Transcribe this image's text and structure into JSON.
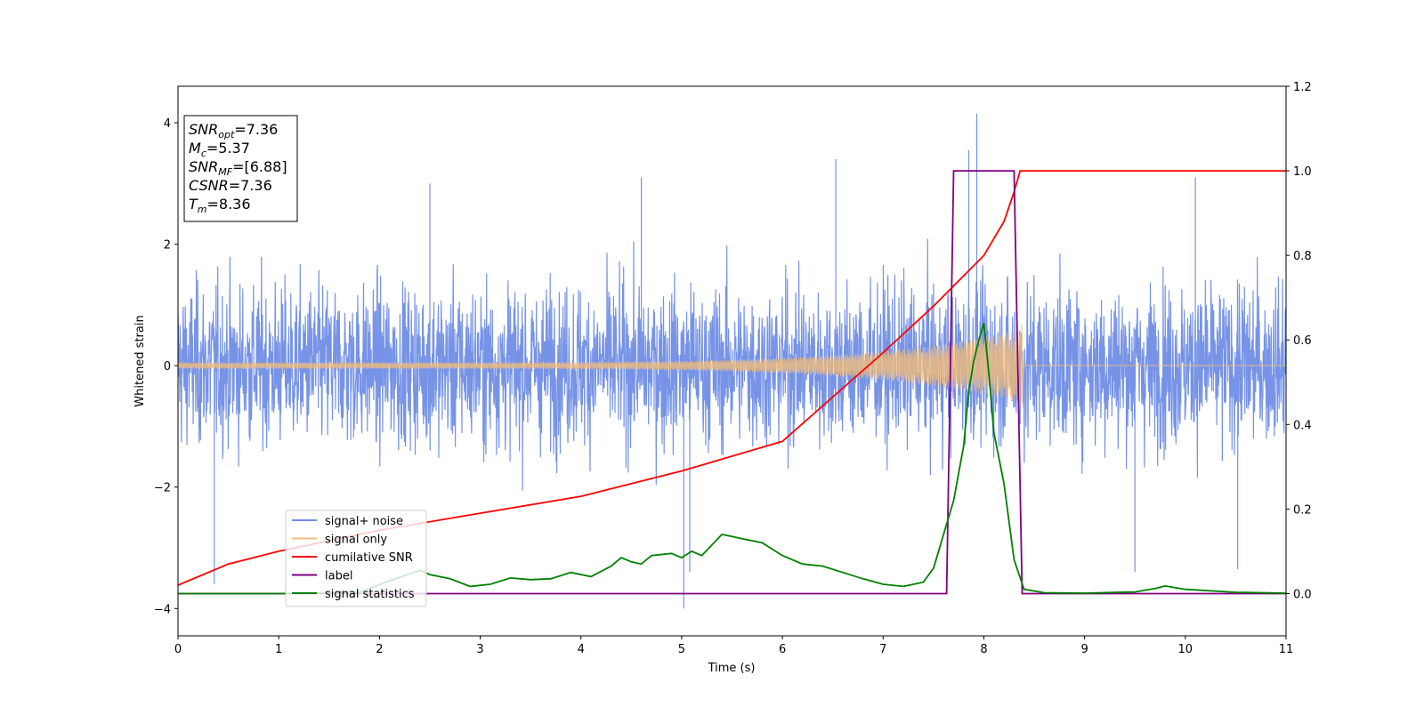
{
  "chart_data": {
    "type": "line",
    "xlabel": "Time (s)",
    "ylabel": "Whitened strain",
    "xlim": [
      0,
      11
    ],
    "ylim_left": [
      -4.45,
      4.6
    ],
    "ylim_right": [
      -0.1,
      1.2
    ],
    "x_ticks": [
      {
        "v": 0,
        "t": "0"
      },
      {
        "v": 1,
        "t": "1"
      },
      {
        "v": 2,
        "t": "2"
      },
      {
        "v": 3,
        "t": "3"
      },
      {
        "v": 4,
        "t": "4"
      },
      {
        "v": 5,
        "t": "5"
      },
      {
        "v": 6,
        "t": "6"
      },
      {
        "v": 7,
        "t": "7"
      },
      {
        "v": 8,
        "t": "8"
      },
      {
        "v": 9,
        "t": "9"
      },
      {
        "v": 10,
        "t": "10"
      },
      {
        "v": 11,
        "t": "11"
      }
    ],
    "y_ticks_left": [
      {
        "v": -4,
        "t": "−4"
      },
      {
        "v": -2,
        "t": "−2"
      },
      {
        "v": 0,
        "t": "0"
      },
      {
        "v": 2,
        "t": "2"
      },
      {
        "v": 4,
        "t": "4"
      }
    ],
    "y_ticks_right": [
      {
        "v": 0.0,
        "t": "0.0"
      },
      {
        "v": 0.2,
        "t": "0.2"
      },
      {
        "v": 0.4,
        "t": "0.4"
      },
      {
        "v": 0.6,
        "t": "0.6"
      },
      {
        "v": 0.8,
        "t": "0.8"
      },
      {
        "v": 1.0,
        "t": "1.0"
      },
      {
        "v": 1.2,
        "t": "1.2"
      }
    ],
    "series": [
      {
        "name": "signal+ noise",
        "color": "#6f8de6",
        "axis": "left",
        "kind": "noise",
        "noise_sigma": 1.05,
        "spike_max": 4.15
      },
      {
        "name": "signal only",
        "color": "#f2bd7a",
        "axis": "left",
        "kind": "chirp",
        "amplitude_start": 0.05,
        "amplitude_end": 0.6,
        "merger_time": 8.36
      },
      {
        "name": "cumilative SNR",
        "color": "#ff0000",
        "axis": "right",
        "x": [
          0,
          0.5,
          1,
          2,
          3,
          4,
          5,
          6,
          7,
          7.5,
          8,
          8.2,
          8.3,
          8.36,
          8.4,
          9,
          10,
          11
        ],
        "y": [
          0.02,
          0.07,
          0.1,
          0.15,
          0.19,
          0.23,
          0.29,
          0.36,
          0.57,
          0.68,
          0.8,
          0.88,
          0.95,
          1.0,
          1.0,
          1.0,
          1.0,
          1.0
        ]
      },
      {
        "name": "label",
        "color": "#800080",
        "axis": "right",
        "x": [
          0,
          7.63,
          7.7,
          8.3,
          8.38,
          11
        ],
        "y": [
          0,
          0,
          1,
          1,
          0,
          0
        ]
      },
      {
        "name": "signal statistics",
        "color": "#008000",
        "axis": "right",
        "x": [
          0,
          1,
          1.8,
          2.1,
          2.4,
          2.5,
          2.7,
          2.9,
          3.1,
          3.3,
          3.5,
          3.7,
          3.9,
          4.1,
          4.3,
          4.4,
          4.5,
          4.6,
          4.7,
          4.9,
          5.0,
          5.1,
          5.2,
          5.4,
          5.6,
          5.8,
          6.0,
          6.2,
          6.4,
          6.6,
          6.8,
          7.0,
          7.2,
          7.4,
          7.5,
          7.6,
          7.7,
          7.8,
          7.85,
          7.9,
          7.95,
          8.0,
          8.05,
          8.1,
          8.2,
          8.3,
          8.4,
          8.6,
          9.0,
          9.5,
          9.7,
          9.8,
          10.0,
          10.5,
          11
        ],
        "y": [
          0,
          0,
          0.003,
          0.03,
          0.055,
          0.045,
          0.035,
          0.017,
          0.022,
          0.037,
          0.033,
          0.035,
          0.05,
          0.04,
          0.065,
          0.085,
          0.075,
          0.07,
          0.09,
          0.095,
          0.085,
          0.1,
          0.09,
          0.14,
          0.13,
          0.12,
          0.09,
          0.07,
          0.065,
          0.05,
          0.035,
          0.022,
          0.017,
          0.027,
          0.06,
          0.14,
          0.22,
          0.35,
          0.48,
          0.55,
          0.6,
          0.64,
          0.52,
          0.38,
          0.26,
          0.08,
          0.01,
          0.002,
          0.001,
          0.004,
          0.012,
          0.018,
          0.01,
          0.003,
          0.001
        ]
      }
    ],
    "legend": [
      "signal+ noise",
      "signal only",
      "cumilative SNR",
      "label",
      "signal statistics"
    ],
    "legend_position": "lower-left",
    "info_box": [
      {
        "main": "SNR",
        "sub": "opt",
        "rest": "=7.36"
      },
      {
        "main": "M",
        "sub": "c",
        "rest": "=5.37"
      },
      {
        "main": "SNR",
        "sub": "MF",
        "rest": "=[6.88]"
      },
      {
        "main": "CSNR",
        "sub": "",
        "rest": "=7.36"
      },
      {
        "main": "T",
        "sub": "m",
        "rest": "=8.36"
      }
    ]
  }
}
